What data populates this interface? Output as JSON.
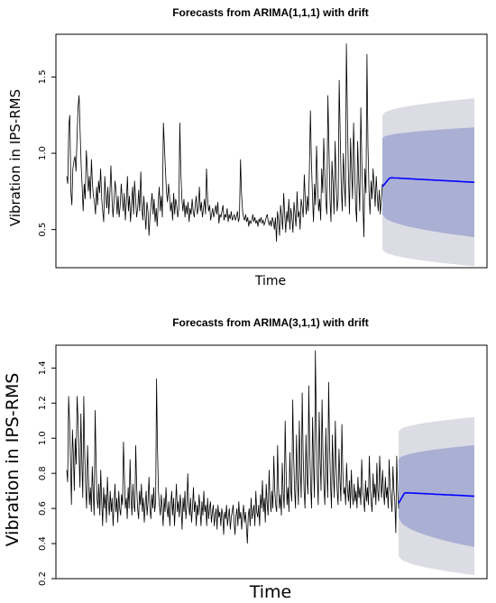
{
  "chart_data": [
    {
      "type": "line",
      "title": "Forecasts from ARIMA(1,1,1) with drift",
      "xlabel": "Time",
      "ylabel": "Vibration in IPS-RMS",
      "ylim": [
        0.25,
        1.78
      ],
      "yticks": [
        0.5,
        1.0,
        1.5
      ],
      "ytick_labels": [
        "0.5",
        "1.0",
        "1.5"
      ],
      "grid": false,
      "colors": {
        "history": "#000000",
        "forecast_mean": "#0000ff",
        "band95": "#dcdce4",
        "band80": "#aab0d4"
      },
      "history": {
        "n": 400,
        "values": [
          0.85,
          0.8,
          1.18,
          1.25,
          0.75,
          0.66,
          0.9,
          0.95,
          0.98,
          0.88,
          1.1,
          1.3,
          1.38,
          1.15,
          0.92,
          0.78,
          0.62,
          0.8,
          0.7,
          1.02,
          0.9,
          0.75,
          0.85,
          0.7,
          0.96,
          0.8,
          0.72,
          0.68,
          0.6,
          0.78,
          0.66,
          0.82,
          0.74,
          0.9,
          0.7,
          0.62,
          0.55,
          0.85,
          0.72,
          0.64,
          0.78,
          0.6,
          0.75,
          0.92,
          0.7,
          0.58,
          0.68,
          0.82,
          0.75,
          0.6,
          0.72,
          0.58,
          0.66,
          0.8,
          0.7,
          0.62,
          0.74,
          0.56,
          0.68,
          0.85,
          0.62,
          0.72,
          0.55,
          0.66,
          0.78,
          0.6,
          0.82,
          0.7,
          0.58,
          0.64,
          0.76,
          0.62,
          0.88,
          0.66,
          0.56,
          0.72,
          0.6,
          0.5,
          0.68,
          0.62,
          0.46,
          0.58,
          0.66,
          0.74,
          0.6,
          0.7,
          0.55,
          0.64,
          0.52,
          0.68,
          0.78,
          0.62,
          0.72,
          0.58,
          1.2,
          1.05,
          0.9,
          0.75,
          0.68,
          0.8,
          0.72,
          0.62,
          0.68,
          0.56,
          0.74,
          0.6,
          0.7,
          0.66,
          0.58,
          0.64,
          1.2,
          0.88,
          0.7,
          0.62,
          0.7,
          0.58,
          0.66,
          0.6,
          0.68,
          0.55,
          0.64,
          0.6,
          0.7,
          0.62,
          0.58,
          0.66,
          0.72,
          0.6,
          0.64,
          0.78,
          0.62,
          0.68,
          0.58,
          0.64,
          0.7,
          0.6,
          0.9,
          0.7,
          0.62,
          0.66,
          0.56,
          0.6,
          0.64,
          0.58,
          0.62,
          0.66,
          0.6,
          0.68,
          0.54,
          0.6,
          0.58,
          0.62,
          0.66,
          0.56,
          0.6,
          0.58,
          0.64,
          0.55,
          0.6,
          0.57,
          0.62,
          0.56,
          0.58,
          0.6,
          0.56,
          0.58,
          0.62,
          0.55,
          0.58,
          0.96,
          0.74,
          0.62,
          0.58,
          0.56,
          0.6,
          0.55,
          0.58,
          0.52,
          0.56,
          0.54,
          0.56,
          0.6,
          0.55,
          0.58,
          0.54,
          0.56,
          0.52,
          0.57,
          0.55,
          0.58,
          0.54,
          0.56,
          0.53,
          0.55,
          0.58,
          0.6,
          0.55,
          0.53,
          0.56,
          0.52,
          0.58,
          0.55,
          0.5,
          0.58,
          0.42,
          0.62,
          0.56,
          0.46,
          0.66,
          0.58,
          0.5,
          0.74,
          0.6,
          0.48,
          0.62,
          0.55,
          0.7,
          0.5,
          0.64,
          0.58,
          0.48,
          0.68,
          0.6,
          0.52,
          0.75,
          0.58,
          0.62,
          0.5,
          0.7,
          0.65,
          0.58,
          0.86,
          0.7,
          0.6,
          0.72,
          0.62,
          0.9,
          1.28,
          0.95,
          0.72,
          0.55,
          0.8,
          0.66,
          1.05,
          0.8,
          0.62,
          0.7,
          0.56,
          0.9,
          0.74,
          1.1,
          0.85,
          0.68,
          0.6,
          1.38,
          1.05,
          0.7,
          0.55,
          0.95,
          0.8,
          0.6,
          1.08,
          0.82,
          0.62,
          0.7,
          1.48,
          1.1,
          0.78,
          0.62,
          1.0,
          0.82,
          0.65,
          1.72,
          1.25,
          0.85,
          0.6,
          1.1,
          0.9,
          0.7,
          1.2,
          0.92,
          0.65,
          0.55,
          1.08,
          0.82,
          0.62,
          1.3,
          0.95,
          0.7,
          0.45,
          0.9,
          0.74,
          1.65,
          1.05,
          0.75,
          0.6,
          0.82,
          0.7,
          0.9,
          0.78,
          0.65,
          0.85,
          0.72,
          0.62,
          0.76,
          0.6,
          0.7,
          0.8
        ],
        "note_count_estimated": true
      },
      "forecast": {
        "n": 60,
        "mean_start": 0.78,
        "mean_peak": 0.84,
        "mean_end": 0.81,
        "lo80_start": 0.6,
        "lo80_end": 0.45,
        "hi80_start": 1.1,
        "hi80_end": 1.17,
        "lo95_start": 0.37,
        "lo95_end": 0.26,
        "hi95_start": 1.25,
        "hi95_end": 1.36
      }
    },
    {
      "type": "line",
      "title": "Forecasts from ARIMA(3,1,1) with drift",
      "xlabel": "Time",
      "ylabel": "Vibration in IPS-RMS",
      "ylim": [
        0.2,
        1.53
      ],
      "yticks": [
        0.2,
        0.4,
        0.6,
        0.8,
        1.0,
        1.2,
        1.4
      ],
      "ytick_labels": [
        "0.2",
        "0.4",
        "0.6",
        "0.8",
        "1.0",
        "1.2",
        "1.4"
      ],
      "grid": false,
      "colors": {
        "history": "#000000",
        "forecast_mean": "#0000ff",
        "band95": "#dcdce4",
        "band80": "#aab0d4"
      },
      "history": {
        "n": 420,
        "values": [
          0.82,
          0.75,
          1.24,
          1.1,
          0.86,
          0.62,
          1.05,
          0.92,
          0.7,
          1.0,
          0.85,
          1.24,
          1.1,
          0.9,
          0.72,
          1.14,
          0.86,
          0.66,
          1.24,
          0.92,
          0.72,
          0.6,
          0.96,
          0.78,
          0.62,
          0.72,
          0.58,
          0.84,
          0.68,
          0.56,
          1.16,
          0.88,
          0.66,
          0.6,
          0.74,
          0.56,
          0.82,
          0.64,
          0.5,
          0.72,
          0.6,
          0.68,
          0.52,
          0.78,
          0.64,
          0.56,
          0.7,
          0.58,
          0.66,
          0.5,
          0.62,
          0.74,
          0.58,
          0.66,
          0.52,
          0.7,
          0.6,
          0.56,
          0.68,
          0.62,
          0.98,
          0.78,
          0.6,
          0.66,
          0.54,
          0.72,
          0.6,
          0.88,
          0.66,
          0.56,
          0.74,
          0.62,
          0.58,
          0.96,
          0.72,
          0.6,
          0.54,
          0.7,
          0.62,
          0.74,
          0.58,
          0.66,
          0.52,
          0.62,
          0.7,
          0.56,
          0.64,
          0.78,
          0.6,
          0.54,
          0.68,
          0.6,
          0.72,
          0.58,
          0.64,
          1.34,
          0.95,
          0.7,
          0.62,
          0.56,
          0.68,
          0.6,
          0.5,
          0.66,
          0.58,
          0.72,
          0.6,
          0.55,
          0.64,
          0.5,
          0.62,
          0.7,
          0.56,
          0.66,
          0.5,
          0.62,
          0.74,
          0.58,
          0.64,
          0.55,
          0.68,
          0.6,
          0.48,
          0.66,
          0.58,
          0.7,
          0.54,
          0.62,
          0.8,
          0.62,
          0.56,
          0.66,
          0.52,
          0.6,
          0.72,
          0.58,
          0.64,
          0.5,
          0.62,
          0.56,
          0.68,
          0.6,
          0.5,
          0.64,
          0.56,
          0.7,
          0.58,
          0.62,
          0.5,
          0.66,
          0.54,
          0.6,
          0.64,
          0.52,
          0.58,
          0.62,
          0.5,
          0.56,
          0.6,
          0.48,
          0.62,
          0.55,
          0.58,
          0.5,
          0.6,
          0.56,
          0.45,
          0.58,
          0.54,
          0.62,
          0.5,
          0.56,
          0.6,
          0.48,
          0.55,
          0.58,
          0.62,
          0.52,
          0.45,
          0.56,
          0.6,
          0.5,
          0.64,
          0.54,
          0.58,
          0.48,
          0.56,
          0.62,
          0.52,
          0.58,
          0.5,
          0.4,
          0.56,
          0.6,
          0.5,
          0.66,
          0.54,
          0.58,
          0.62,
          0.5,
          0.7,
          0.58,
          0.55,
          0.62,
          0.5,
          0.68,
          0.6,
          0.76,
          0.58,
          0.66,
          0.52,
          0.74,
          0.62,
          0.56,
          0.82,
          0.66,
          0.58,
          0.7,
          0.6,
          0.9,
          0.7,
          0.62,
          0.58,
          0.96,
          0.72,
          0.6,
          0.68,
          0.56,
          0.86,
          0.68,
          0.6,
          1.1,
          0.82,
          0.62,
          0.72,
          0.58,
          0.92,
          0.7,
          0.64,
          1.22,
          0.9,
          0.7,
          0.6,
          1.02,
          0.78,
          0.62,
          1.1,
          0.82,
          0.66,
          1.26,
          0.92,
          0.7,
          0.6,
          1.02,
          0.78,
          0.68,
          1.3,
          0.95,
          0.72,
          0.6,
          1.12,
          0.85,
          0.66,
          1.5,
          1.05,
          0.78,
          0.62,
          1.15,
          0.88,
          0.7,
          1.22,
          0.92,
          0.72,
          0.62,
          1.06,
          0.82,
          0.66,
          1.32,
          0.96,
          0.74,
          0.6,
          1.02,
          0.8,
          0.66,
          1.1,
          0.85,
          0.7,
          0.62,
          0.94,
          0.76,
          0.64,
          1.08,
          0.82,
          0.68,
          0.72,
          0.62,
          0.86,
          0.7,
          0.64,
          0.76,
          0.6,
          0.82,
          0.68,
          0.62,
          0.74,
          0.64,
          0.7,
          0.6,
          0.78,
          0.66,
          0.72,
          0.62,
          0.88,
          0.7,
          0.66,
          0.58,
          0.76,
          0.64,
          0.72,
          0.62,
          0.9,
          0.72,
          0.64,
          0.58,
          0.8,
          0.66,
          0.74,
          0.62,
          0.86,
          0.7,
          0.64,
          0.9,
          0.74,
          0.66,
          0.82,
          0.7,
          0.62,
          0.78,
          0.66,
          0.72,
          0.6,
          0.88,
          0.72,
          0.66,
          0.58,
          0.84,
          0.7,
          0.64,
          0.46,
          0.9,
          0.7,
          0.6
        ],
        "note_count_estimated": true
      },
      "forecast": {
        "n": 60,
        "mean_start": 0.63,
        "mean_peak": 0.69,
        "mean_end": 0.67,
        "lo80_start": 0.55,
        "lo80_end": 0.38,
        "hi80_start": 0.88,
        "hi80_end": 0.96,
        "lo95_start": 0.33,
        "lo95_end": 0.22,
        "hi95_start": 1.04,
        "hi95_end": 1.12
      }
    }
  ]
}
